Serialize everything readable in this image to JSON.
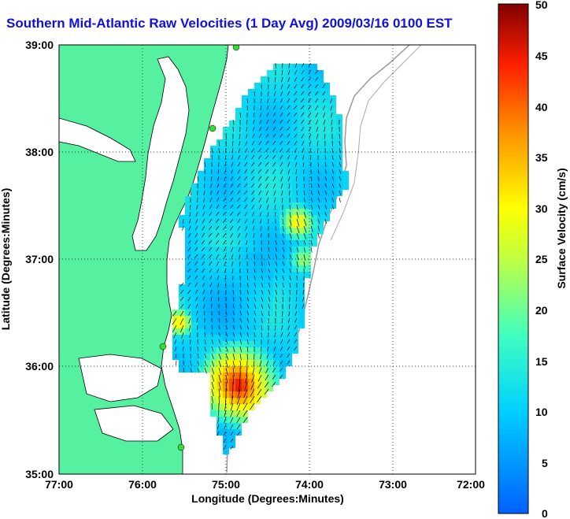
{
  "title": "Southern Mid-Atlantic Raw Velocities (1 Day Avg) 2009/03/16 0100 EST",
  "xaxis": {
    "label": "Longitude (Degrees:Minutes)",
    "ticks": [
      "77:00",
      "76:00",
      "75:00",
      "74:00",
      "73:00",
      "72:00"
    ]
  },
  "yaxis": {
    "label": "Latitude (Degrees:Minutes)",
    "ticks": [
      "39:00",
      "38:00",
      "37:00",
      "36:00",
      "35:00"
    ]
  },
  "colorbar": {
    "label": "Surface Velocity (cm/s)",
    "ticks": [
      "50",
      "45",
      "40",
      "35",
      "30",
      "25",
      "20",
      "15",
      "10",
      "5",
      "0"
    ],
    "min": 0,
    "max": 50
  },
  "map": {
    "lon_range": [
      -77,
      -72
    ],
    "lat_range": [
      35,
      39
    ],
    "land_color": "#55f0a0",
    "grid": "dotted",
    "station_color": "#33dd33"
  }
}
